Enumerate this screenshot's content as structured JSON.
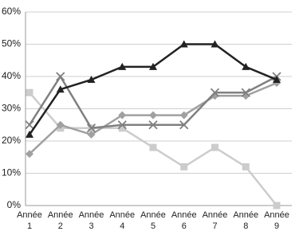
{
  "chart_data": {
    "type": "line",
    "categories": [
      "Année\n1",
      "Année\n2",
      "Année\n3",
      "Année\n4",
      "Année\n5",
      "Année\n6",
      "Année\n7",
      "Année\n8",
      "Année\n9"
    ],
    "series": [
      {
        "color": "#222222",
        "marker": "triangle",
        "values": [
          22,
          36,
          39,
          43,
          43,
          50,
          50,
          43,
          39
        ]
      },
      {
        "color": "#808080",
        "marker": "x",
        "values": [
          25,
          40,
          24,
          25,
          25,
          25,
          35,
          35,
          40
        ]
      },
      {
        "color": "#a0a0a0",
        "marker": "diamond",
        "values": [
          16,
          25,
          22,
          28,
          28,
          28,
          34,
          34,
          38
        ]
      },
      {
        "color": "#cccccc",
        "marker": "square",
        "values": [
          35,
          24,
          24,
          24,
          18,
          12,
          18,
          12,
          0
        ]
      }
    ],
    "ylim": [
      0,
      60
    ],
    "yticks": [
      {
        "value": 0,
        "label": "0%"
      },
      {
        "value": 10,
        "label": "10%"
      },
      {
        "value": 20,
        "label": "20%"
      },
      {
        "value": 30,
        "label": "30%"
      },
      {
        "value": 40,
        "label": "40%"
      },
      {
        "value": 50,
        "label": "50%"
      },
      {
        "value": 60,
        "label": "60%"
      }
    ],
    "grid": true
  }
}
